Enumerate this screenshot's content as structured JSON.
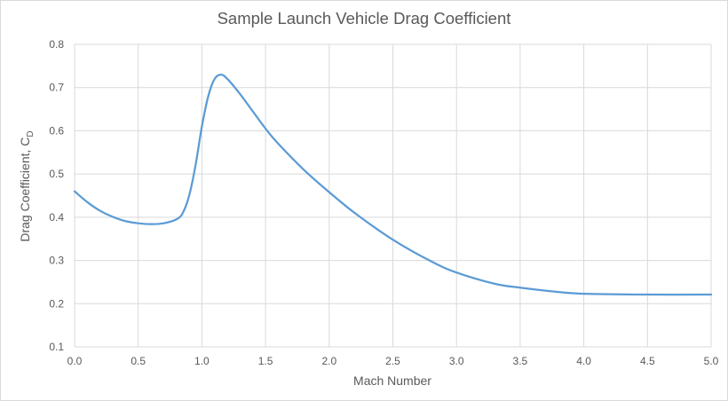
{
  "chart_data": {
    "type": "line",
    "title": "Sample Launch Vehicle Drag Coefficient",
    "xlabel": "Mach Number",
    "ylabel": {
      "main": "Drag Coefficient, C",
      "subscript": "D"
    },
    "xlim": [
      0.0,
      5.0
    ],
    "ylim": [
      0.1,
      0.8
    ],
    "x_ticks": [
      0.0,
      0.5,
      1.0,
      1.5,
      2.0,
      2.5,
      3.0,
      3.5,
      4.0,
      4.5,
      5.0
    ],
    "y_ticks": [
      0.1,
      0.2,
      0.3,
      0.4,
      0.5,
      0.6,
      0.7,
      0.8
    ],
    "x_tick_labels": [
      "0.0",
      "0.5",
      "1.0",
      "1.5",
      "2.0",
      "2.5",
      "3.0",
      "3.5",
      "4.0",
      "4.5",
      "5.0"
    ],
    "y_tick_labels": [
      "0.1",
      "0.2",
      "0.3",
      "0.4",
      "0.5",
      "0.6",
      "0.7",
      "0.8"
    ],
    "grid": true,
    "series": [
      {
        "color": "#5b9bd5",
        "x": [
          0.0,
          0.1,
          0.2,
          0.3,
          0.4,
          0.5,
          0.6,
          0.7,
          0.8,
          0.85,
          0.9,
          0.95,
          1.0,
          1.05,
          1.1,
          1.15,
          1.2,
          1.3,
          1.4,
          1.5,
          1.6,
          1.8,
          2.0,
          2.2,
          2.5,
          2.8,
          3.0,
          3.3,
          3.5,
          3.8,
          4.0,
          4.5,
          5.0
        ],
        "y": [
          0.46,
          0.435,
          0.415,
          0.401,
          0.391,
          0.386,
          0.384,
          0.386,
          0.395,
          0.41,
          0.45,
          0.52,
          0.61,
          0.68,
          0.72,
          0.73,
          0.72,
          0.685,
          0.645,
          0.605,
          0.57,
          0.51,
          0.458,
          0.41,
          0.348,
          0.298,
          0.272,
          0.246,
          0.237,
          0.227,
          0.223,
          0.221,
          0.221
        ]
      }
    ]
  }
}
